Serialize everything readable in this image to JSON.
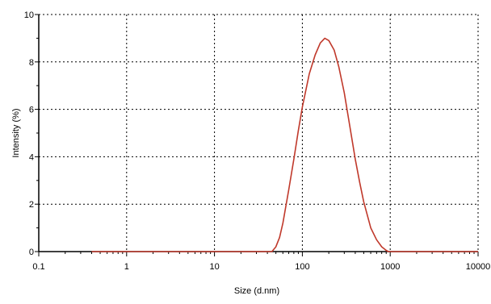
{
  "chart_data": {
    "type": "line",
    "title": "",
    "xlabel": "Size (d.nm)",
    "ylabel": "Intensity (%)",
    "x_scale": "log",
    "xlim": [
      0.1,
      10000
    ],
    "ylim": [
      0,
      10
    ],
    "grid": true,
    "x_ticks": [
      0.1,
      1,
      10,
      100,
      1000,
      10000
    ],
    "x_tick_labels": [
      "0.1",
      "1",
      "10",
      "100",
      "1000",
      "10000"
    ],
    "y_ticks": [
      0,
      2,
      4,
      6,
      8,
      10
    ],
    "y_tick_labels": [
      "0",
      "2",
      "4",
      "6",
      "8",
      "10"
    ],
    "series": [
      {
        "color": "#c0392b",
        "x": [
          0.4,
          1,
          10,
          45,
          50,
          55,
          60,
          70,
          80,
          90,
          100,
          120,
          140,
          160,
          180,
          200,
          230,
          260,
          300,
          350,
          400,
          450,
          500,
          600,
          700,
          800,
          900,
          950,
          1000,
          10000
        ],
        "y": [
          0,
          0,
          0,
          0,
          0.2,
          0.6,
          1.2,
          2.6,
          3.9,
          5.1,
          6.1,
          7.5,
          8.3,
          8.8,
          9.0,
          8.9,
          8.5,
          7.8,
          6.7,
          5.2,
          3.9,
          2.9,
          2.1,
          1.0,
          0.5,
          0.2,
          0.05,
          0,
          0,
          0
        ]
      }
    ]
  }
}
